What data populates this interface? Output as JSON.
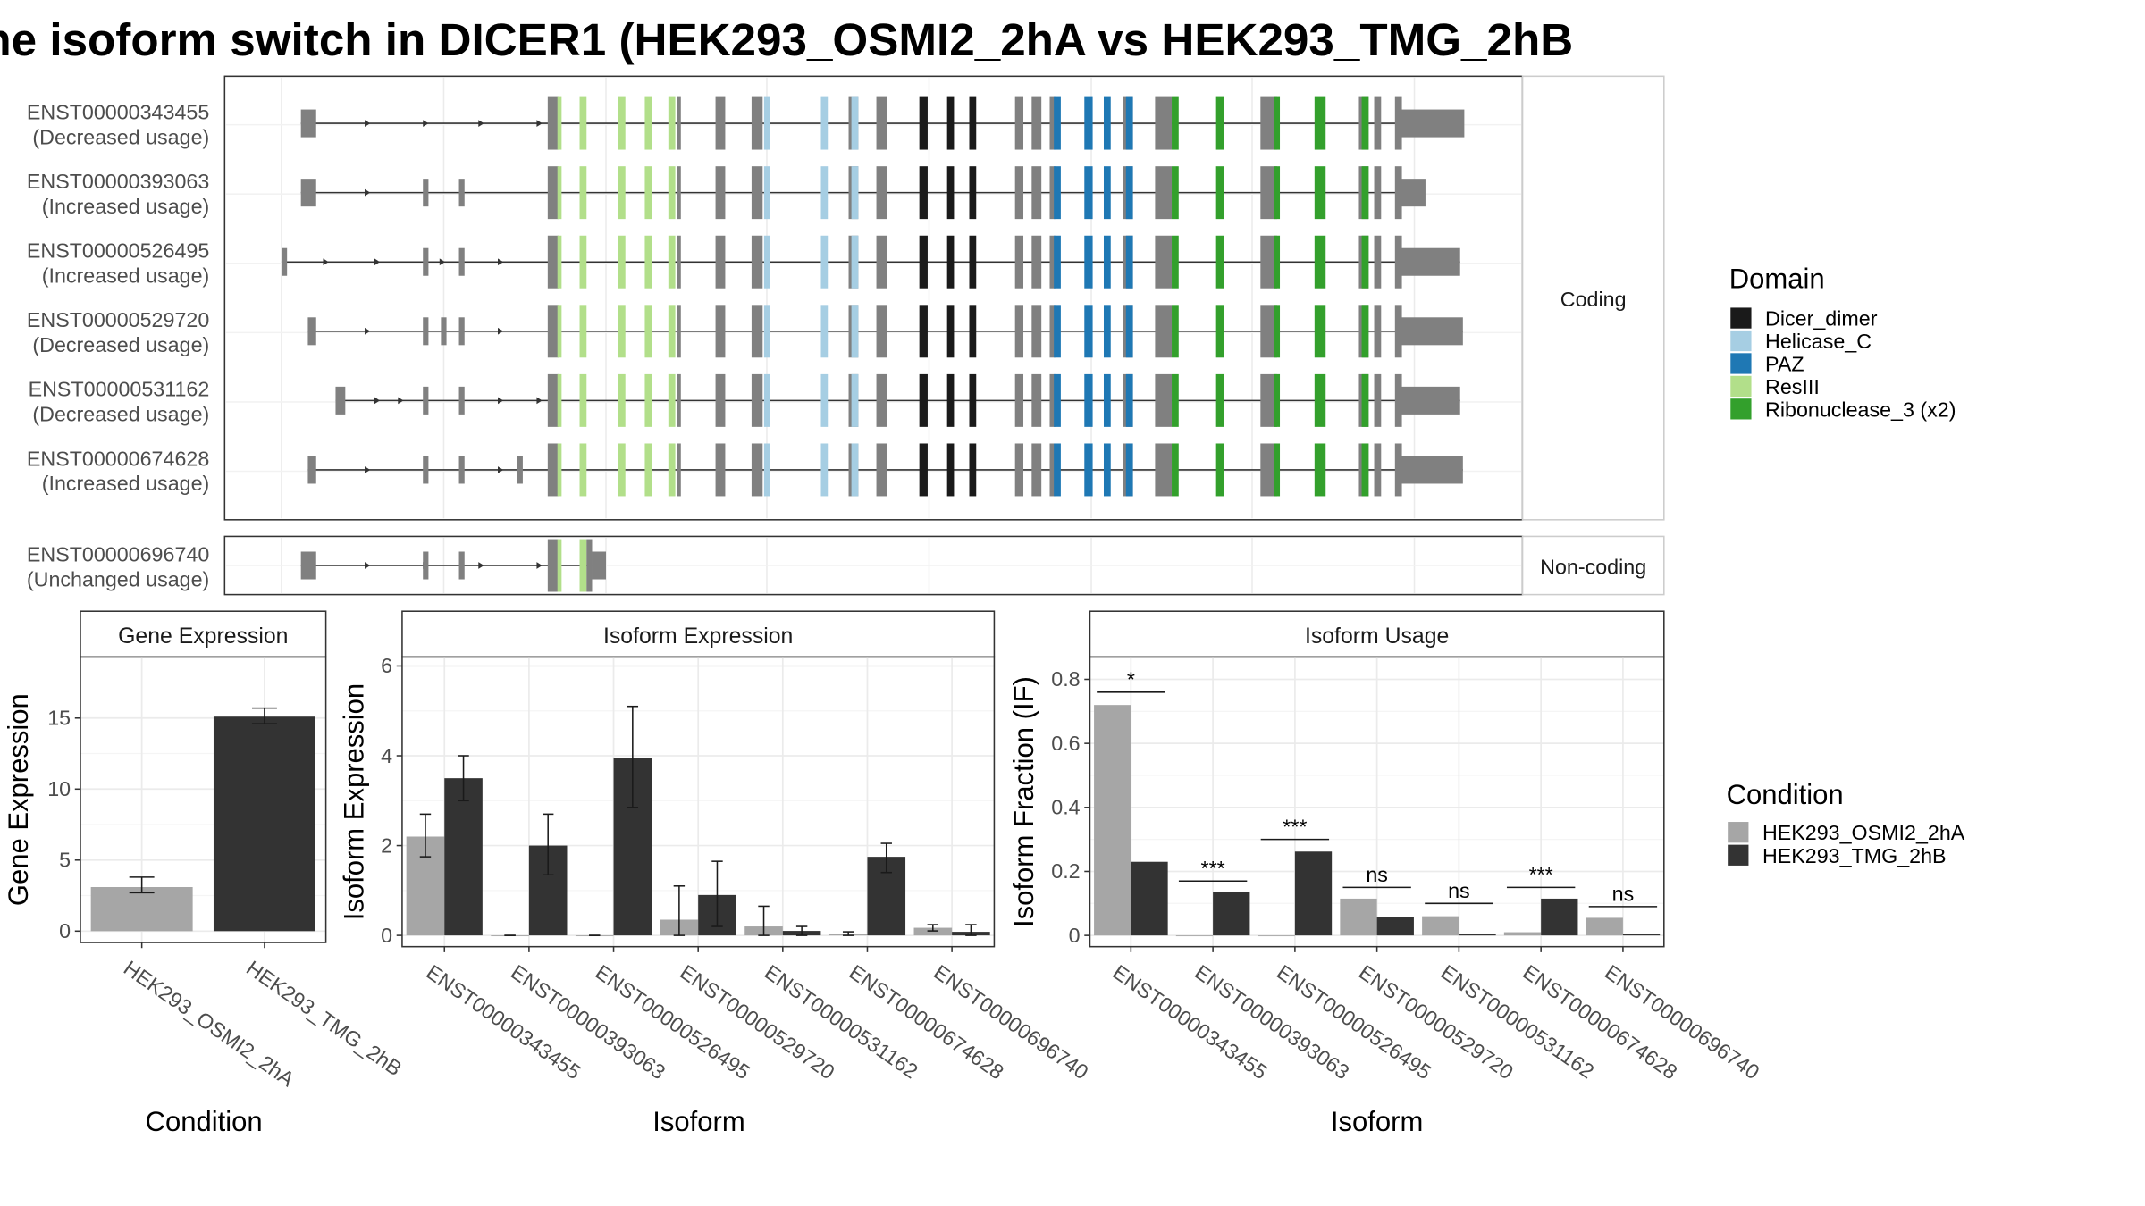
{
  "title": "he isoform switch in DICER1 (HEK293_OSMI2_2hA vs HEK293_TMG_2hB",
  "colors": {
    "cond_a": "#a6a6a6",
    "cond_b": "#333333",
    "exon": "#808080",
    "Dicer_dimer": "#1a1a1a",
    "Helicase_C": "#a6cee3",
    "PAZ": "#1f78b4",
    "ResIII": "#b2df8a",
    "Ribonuclease_3 (x2)": "#33a02c"
  },
  "domain_legend": {
    "title": "Domain",
    "items": [
      "Dicer_dimer",
      "Helicase_C",
      "PAZ",
      "ResIII",
      "Ribonuclease_3 (x2)"
    ]
  },
  "condition_legend": {
    "title": "Condition",
    "items": [
      "HEK293_OSMI2_2hA",
      "HEK293_TMG_2hB"
    ]
  },
  "structure": {
    "coding_label": "Coding",
    "noncoding_label": "Non-coding",
    "coding": [
      {
        "id": "ENST00000343455",
        "usage": "(Decreased usage)"
      },
      {
        "id": "ENST00000393063",
        "usage": "(Increased usage)"
      },
      {
        "id": "ENST00000526495",
        "usage": "(Increased usage)"
      },
      {
        "id": "ENST00000529720",
        "usage": "(Decreased usage)"
      },
      {
        "id": "ENST00000531162",
        "usage": "(Decreased usage)"
      },
      {
        "id": "ENST00000674628",
        "usage": "(Increased usage)"
      }
    ],
    "noncoding": [
      {
        "id": "ENST00000696740",
        "usage": "(Unchanged usage)"
      }
    ]
  },
  "chart_data": [
    {
      "type": "bar",
      "title": "Gene Expression",
      "xlabel": "Condition",
      "ylabel": "Gene Expression",
      "categories": [
        "HEK293_OSMI2_2hA",
        "HEK293_TMG_2hB"
      ],
      "values": [
        3.1,
        15.1
      ],
      "error_low": [
        2.7,
        14.6
      ],
      "error_high": [
        3.8,
        15.7
      ],
      "yticks": [
        0,
        5,
        10,
        15
      ],
      "ylim": [
        -0.8,
        19.3
      ]
    },
    {
      "type": "bar",
      "title": "Isoform Expression",
      "xlabel": "Isoform",
      "ylabel": "Isoform Expression",
      "categories": [
        "ENST00000343455",
        "ENST00000393063",
        "ENST00000526495",
        "ENST00000529720",
        "ENST00000531162",
        "ENST00000674628",
        "ENST00000696740"
      ],
      "series": [
        {
          "name": "HEK293_OSMI2_2hA",
          "values": [
            2.2,
            0.0,
            0.0,
            0.35,
            0.2,
            0.03,
            0.17
          ],
          "err_low": [
            1.75,
            0.0,
            0.0,
            0.0,
            0.0,
            0.0,
            0.1
          ],
          "err_high": [
            2.7,
            0.0,
            0.0,
            1.1,
            0.65,
            0.08,
            0.24
          ]
        },
        {
          "name": "HEK293_TMG_2hB",
          "values": [
            3.5,
            2.0,
            3.95,
            0.9,
            0.1,
            1.75,
            0.08
          ],
          "err_low": [
            3.0,
            1.35,
            2.85,
            0.2,
            0.0,
            1.4,
            0.0
          ],
          "err_high": [
            4.0,
            2.7,
            5.1,
            1.65,
            0.2,
            2.05,
            0.24
          ]
        }
      ],
      "yticks": [
        0,
        2,
        4,
        6
      ],
      "ylim": [
        -0.25,
        6.2
      ]
    },
    {
      "type": "bar",
      "title": "Isoform Usage",
      "xlabel": "Isoform",
      "ylabel": "Isoform Fraction (IF)",
      "categories": [
        "ENST00000343455",
        "ENST00000393063",
        "ENST00000526495",
        "ENST00000529720",
        "ENST00000531162",
        "ENST00000674628",
        "ENST00000696740"
      ],
      "series": [
        {
          "name": "HEK293_OSMI2_2hA",
          "values": [
            0.72,
            0.0,
            0.0,
            0.115,
            0.06,
            0.01,
            0.055
          ]
        },
        {
          "name": "HEK293_TMG_2hB",
          "values": [
            0.23,
            0.135,
            0.262,
            0.058,
            0.005,
            0.115,
            0.005
          ]
        }
      ],
      "significance": [
        "*",
        "***",
        "***",
        "ns",
        "ns",
        "***",
        "ns"
      ],
      "sig_y": [
        0.76,
        0.17,
        0.3,
        0.15,
        0.1,
        0.15,
        0.09
      ],
      "yticks": [
        0.0,
        0.2,
        0.4,
        0.6,
        0.8
      ],
      "ylim": [
        -0.035,
        0.87
      ]
    }
  ]
}
